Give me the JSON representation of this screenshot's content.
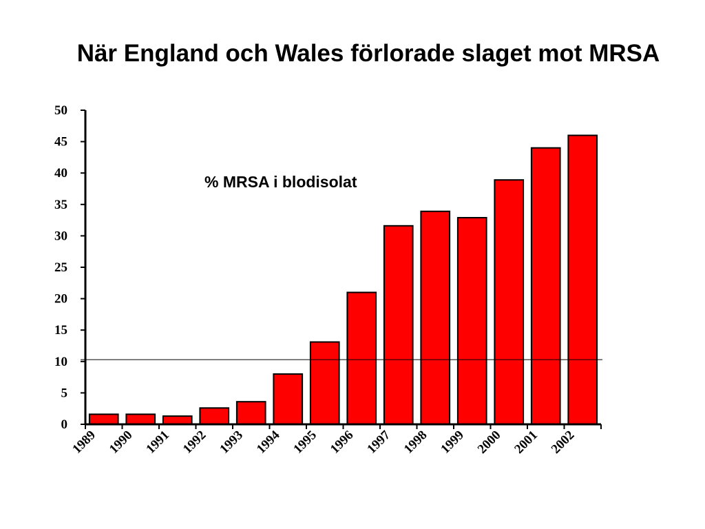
{
  "chart_data": {
    "type": "bar",
    "title": "När England och Wales förlorade slaget mot MRSA",
    "annotation": "% MRSA i blodisolat",
    "categories": [
      "1989",
      "1990",
      "1991",
      "1992",
      "1993",
      "1994",
      "1995",
      "1996",
      "1997",
      "1998",
      "1999",
      "2000",
      "2001",
      "2002"
    ],
    "values": [
      1.6,
      1.6,
      1.3,
      2.6,
      3.6,
      8.0,
      13.1,
      21.0,
      31.6,
      33.9,
      32.9,
      38.9,
      44.0,
      46.0
    ],
    "ylim": [
      0,
      50
    ],
    "yticks": [
      "0",
      "5",
      "10",
      "15",
      "20",
      "25",
      "30",
      "35",
      "40",
      "45",
      "50"
    ],
    "reference_line": 10.3,
    "bar_color": "#ff0000",
    "grid": false,
    "legend": "none"
  }
}
